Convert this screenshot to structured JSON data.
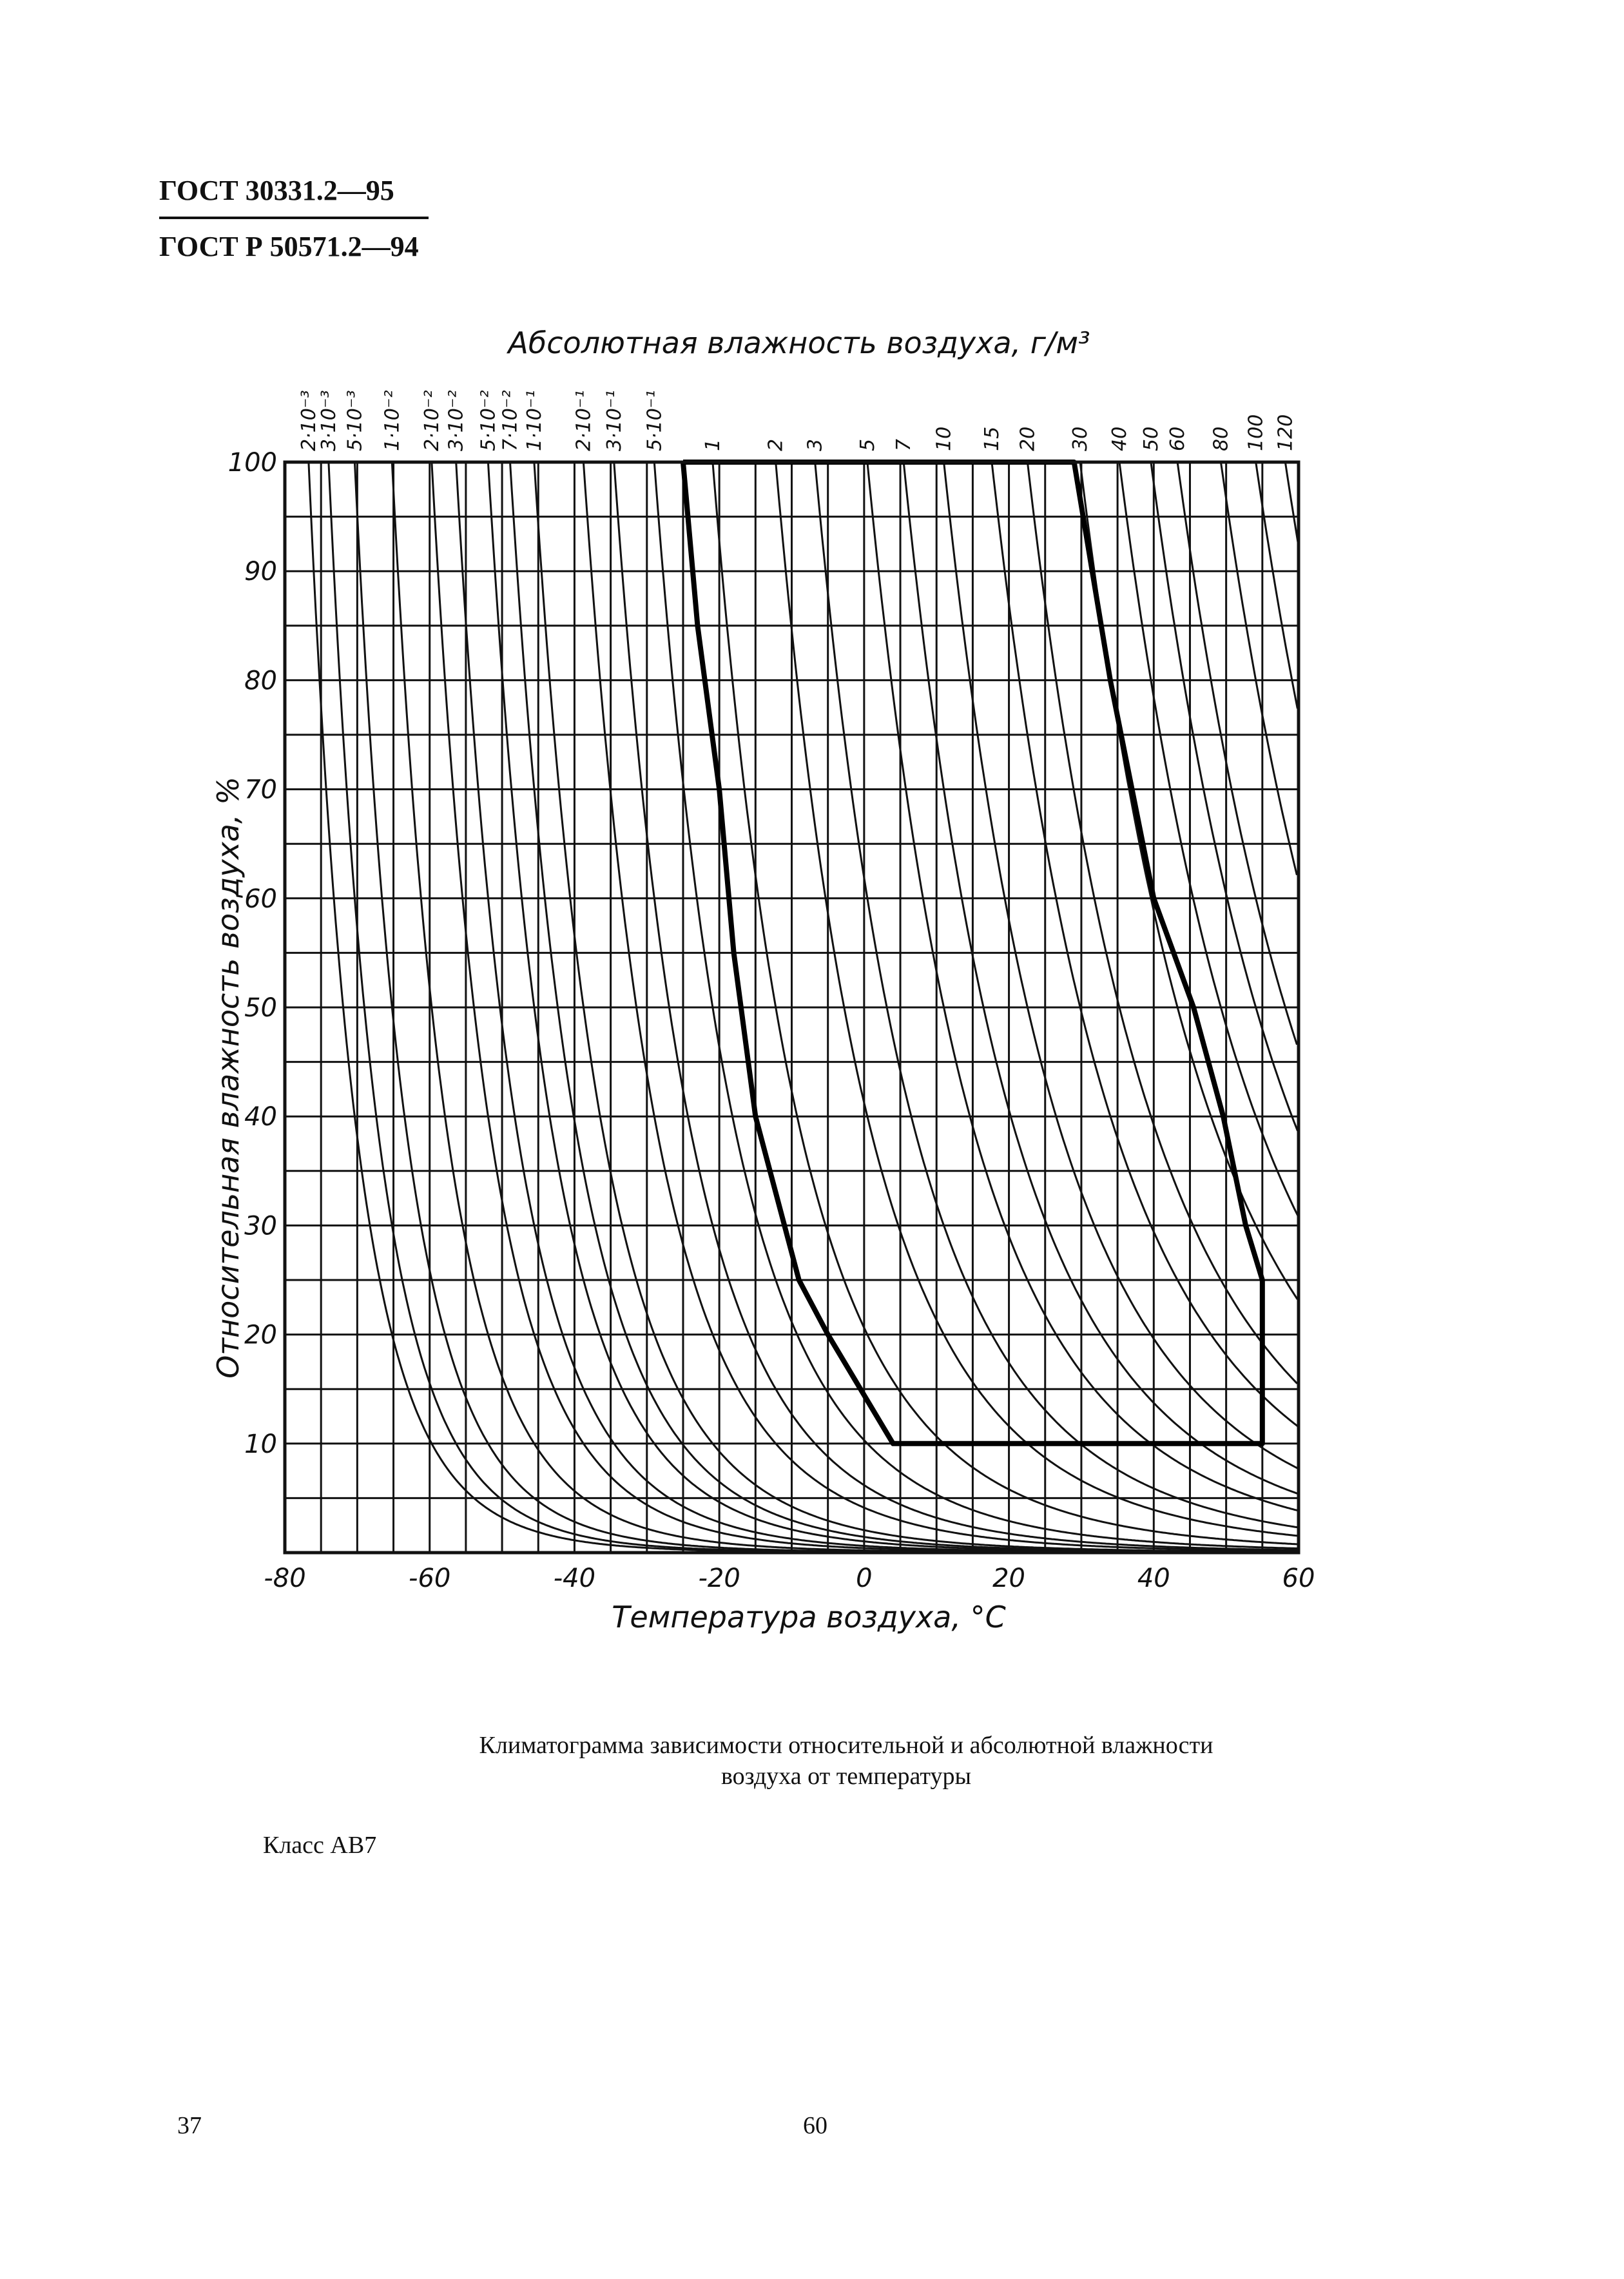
{
  "header": {
    "lines": [
      "ГОСТ 30331.2—95",
      "ГОСТ Р 50571.2—94"
    ]
  },
  "chart_data": {
    "type": "climatogram",
    "title": "Абсолютная влажность воздуха, г/м³",
    "x_label": "Температура воздуха, °С",
    "y_label": "Относительная влажность воздуха, %",
    "xlim": [
      -80,
      60
    ],
    "ylim": [
      0,
      100
    ],
    "xticks": [
      -80,
      -60,
      -40,
      -20,
      0,
      20,
      40,
      60
    ],
    "yticks": [
      10,
      20,
      30,
      40,
      50,
      60,
      70,
      80,
      90,
      100
    ],
    "xgrid": [
      -80,
      -75,
      -70,
      -65,
      -60,
      -55,
      -50,
      -45,
      -40,
      -35,
      -30,
      -25,
      -20,
      -15,
      -10,
      -5,
      0,
      5,
      10,
      15,
      20,
      25,
      30,
      35,
      40,
      45,
      50,
      55,
      60
    ],
    "ygrid": [
      0,
      5,
      10,
      15,
      20,
      25,
      30,
      35,
      40,
      45,
      50,
      55,
      60,
      65,
      70,
      75,
      80,
      85,
      90,
      95,
      100
    ],
    "curves": [
      {
        "value": 0.002,
        "label": "2·10⁻³"
      },
      {
        "value": 0.003,
        "label": "3·10⁻³"
      },
      {
        "value": 0.005,
        "label": "5·10⁻³"
      },
      {
        "value": 0.01,
        "label": "1·10⁻²"
      },
      {
        "value": 0.02,
        "label": "2·10⁻²"
      },
      {
        "value": 0.03,
        "label": "3·10⁻²"
      },
      {
        "value": 0.05,
        "label": "5·10⁻²"
      },
      {
        "value": 0.07,
        "label": "7·10⁻²"
      },
      {
        "value": 0.1,
        "label": "1·10⁻¹"
      },
      {
        "value": 0.2,
        "label": "2·10⁻¹"
      },
      {
        "value": 0.3,
        "label": "3·10⁻¹"
      },
      {
        "value": 0.5,
        "label": "5·10⁻¹"
      },
      1,
      2,
      3,
      5,
      7,
      10,
      15,
      20,
      30,
      40,
      50,
      60,
      80,
      100,
      120
    ],
    "boundary": {
      "x": [
        -25,
        29,
        34,
        40,
        45.5,
        49.6,
        52.7,
        55,
        55,
        4,
        -5,
        -9,
        -15,
        -18,
        -20,
        -23,
        -25
      ],
      "y": [
        100,
        100,
        80,
        60,
        50,
        40,
        30,
        25,
        10,
        10,
        20,
        25,
        40,
        55,
        70,
        85,
        100
      ]
    }
  },
  "caption": [
    "Климатограмма зависимости относительной и абсолютной влажности",
    "воздуха от температуры"
  ],
  "class_label": "Класс АВ7",
  "footer": {
    "left": "37",
    "center": "60"
  }
}
